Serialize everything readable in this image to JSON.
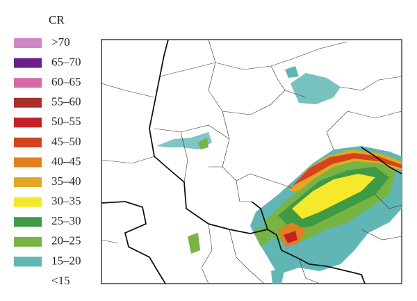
{
  "legend": {
    "title": "CR",
    "items": [
      {
        "label": ">70",
        "color": "#cf86c4"
      },
      {
        "label": "65–70",
        "color": "#6a1f8a"
      },
      {
        "label": "60–65",
        "color": "#d869a4"
      },
      {
        "label": "55–60",
        "color": "#a8302d"
      },
      {
        "label": "50–55",
        "color": "#c42026"
      },
      {
        "label": "45–50",
        "color": "#d4431c"
      },
      {
        "label": "40–45",
        "color": "#e0801e"
      },
      {
        "label": "35–40",
        "color": "#e0a824"
      },
      {
        "label": "30–35",
        "color": "#f6e82a"
      },
      {
        "label": "25–30",
        "color": "#3f9a45"
      },
      {
        "label": "20–25",
        "color": "#78b443"
      },
      {
        "label": "15–20",
        "color": "#5fb6b4"
      },
      {
        "label": "<15"
      }
    ]
  }
}
